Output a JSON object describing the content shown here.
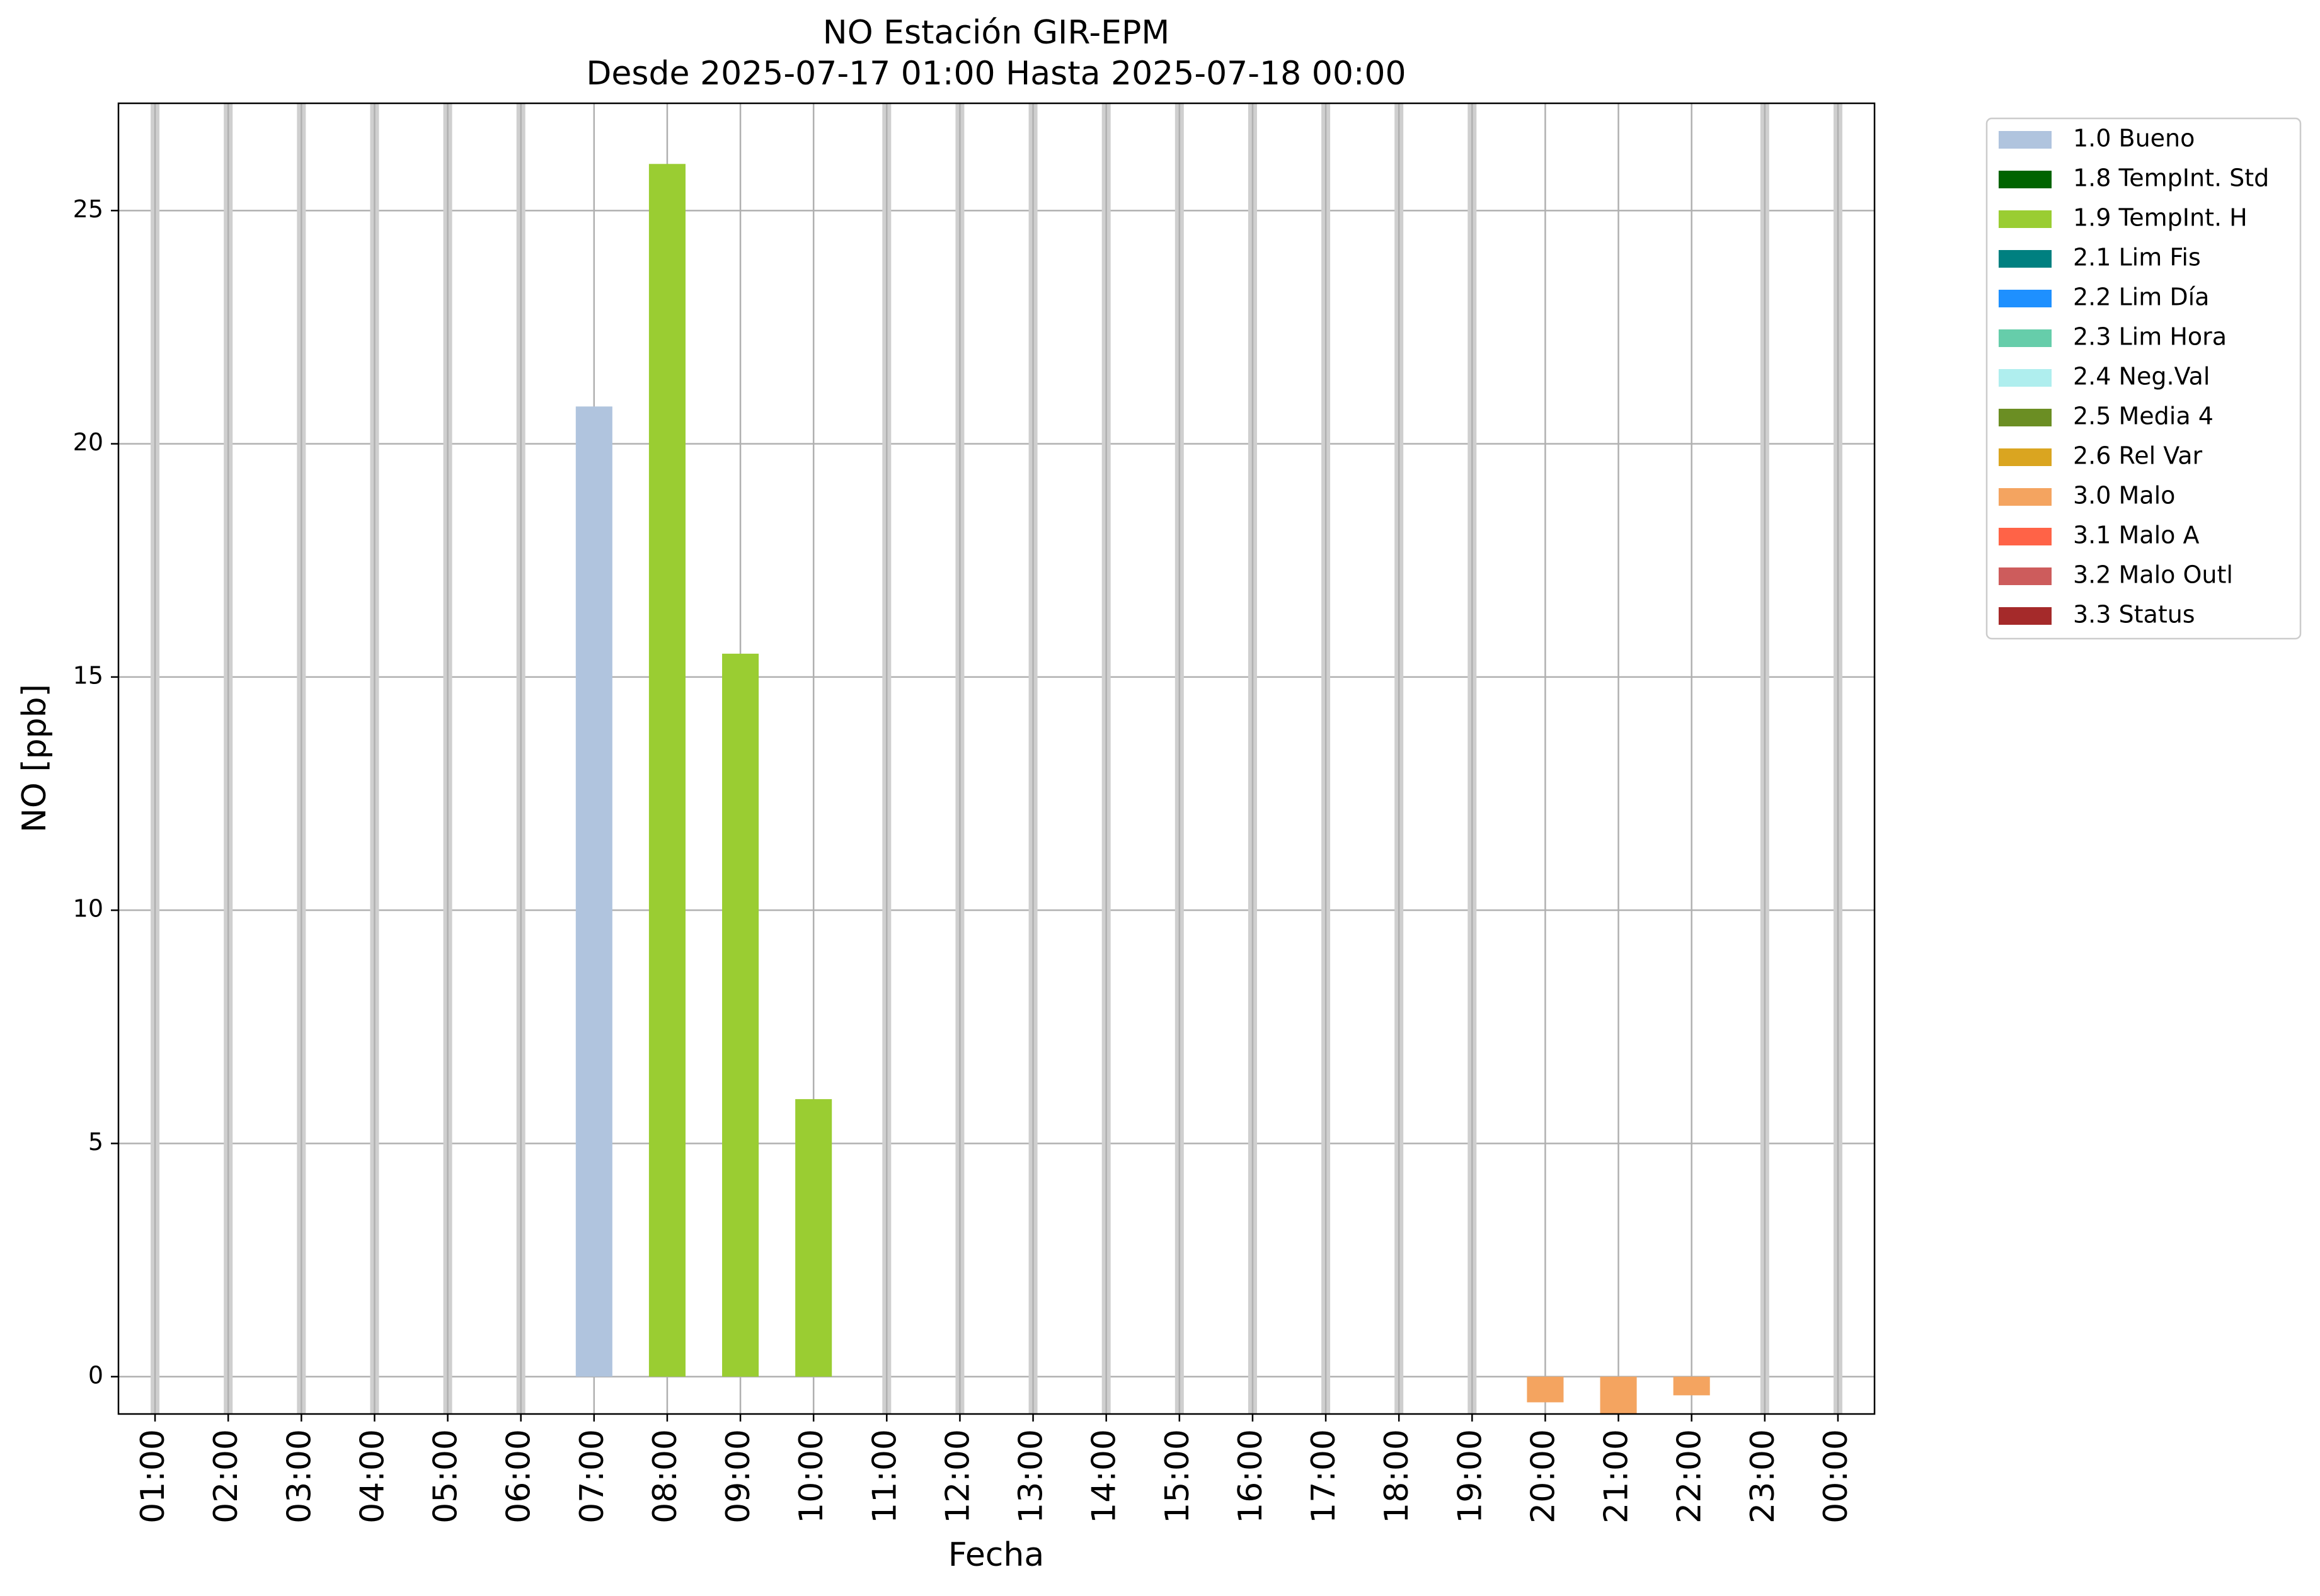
{
  "chart_data": {
    "type": "bar",
    "title": "NO Estación GIR-EPM",
    "subtitle": "Desde 2025-07-17 01:00 Hasta 2025-07-18 00:00",
    "x_label": "Fecha",
    "y_label": "NO [ppb]",
    "categories": [
      "01:00",
      "02:00",
      "03:00",
      "04:00",
      "05:00",
      "06:00",
      "07:00",
      "08:00",
      "09:00",
      "10:00",
      "11:00",
      "12:00",
      "13:00",
      "14:00",
      "15:00",
      "16:00",
      "17:00",
      "18:00",
      "19:00",
      "20:00",
      "21:00",
      "22:00",
      "23:00",
      "00:00"
    ],
    "series": [
      {
        "name": "1.0 Bueno",
        "color": "#b0c4de",
        "values": [
          null,
          null,
          null,
          null,
          null,
          null,
          20.8,
          null,
          null,
          null,
          null,
          null,
          null,
          null,
          null,
          null,
          null,
          null,
          null,
          null,
          null,
          null,
          null,
          null
        ]
      },
      {
        "name": "1.8 TempInt. Std",
        "color": "#006400",
        "values": [
          null,
          null,
          null,
          null,
          null,
          null,
          null,
          null,
          null,
          null,
          null,
          null,
          null,
          null,
          null,
          null,
          null,
          null,
          null,
          null,
          null,
          null,
          null,
          null
        ]
      },
      {
        "name": "1.9 TempInt. H",
        "color": "#9acd32",
        "values": [
          null,
          null,
          null,
          null,
          null,
          null,
          null,
          26.0,
          15.5,
          5.95,
          null,
          null,
          null,
          null,
          null,
          null,
          null,
          null,
          null,
          null,
          null,
          null,
          null,
          null
        ]
      },
      {
        "name": "2.1 Lim Fis",
        "color": "#008080",
        "values": [
          null,
          null,
          null,
          null,
          null,
          null,
          null,
          null,
          null,
          null,
          null,
          null,
          null,
          null,
          null,
          null,
          null,
          null,
          null,
          null,
          null,
          null,
          null,
          null
        ]
      },
      {
        "name": "2.2 Lim Día",
        "color": "#1e90ff",
        "values": [
          null,
          null,
          null,
          null,
          null,
          null,
          null,
          null,
          null,
          null,
          null,
          null,
          null,
          null,
          null,
          null,
          null,
          null,
          null,
          null,
          null,
          null,
          null,
          null
        ]
      },
      {
        "name": "2.3 Lim Hora",
        "color": "#66cdaa",
        "values": [
          null,
          null,
          null,
          null,
          null,
          null,
          null,
          null,
          null,
          null,
          null,
          null,
          null,
          null,
          null,
          null,
          null,
          null,
          null,
          null,
          null,
          null,
          null,
          null
        ]
      },
      {
        "name": "2.4 Neg.Val",
        "color": "#afeeee",
        "values": [
          null,
          null,
          null,
          null,
          null,
          null,
          null,
          null,
          null,
          null,
          null,
          null,
          null,
          null,
          null,
          null,
          null,
          null,
          null,
          null,
          null,
          null,
          null,
          null
        ]
      },
      {
        "name": "2.5 Media 4",
        "color": "#6b8e23",
        "values": [
          null,
          null,
          null,
          null,
          null,
          null,
          null,
          null,
          null,
          null,
          null,
          null,
          null,
          null,
          null,
          null,
          null,
          null,
          null,
          null,
          null,
          null,
          null,
          null
        ]
      },
      {
        "name": "2.6 Rel Var",
        "color": "#daa520",
        "values": [
          null,
          null,
          null,
          null,
          null,
          null,
          null,
          null,
          null,
          null,
          null,
          null,
          null,
          null,
          null,
          null,
          null,
          null,
          null,
          null,
          null,
          null,
          null,
          null
        ]
      },
      {
        "name": "3.0 Malo",
        "color": "#f4a460",
        "values": [
          null,
          null,
          null,
          null,
          null,
          null,
          null,
          null,
          null,
          null,
          null,
          null,
          null,
          null,
          null,
          null,
          null,
          null,
          null,
          -0.55,
          -0.8,
          -0.4,
          null,
          null
        ]
      },
      {
        "name": "3.1 Malo A",
        "color": "#ff6347",
        "values": [
          null,
          null,
          null,
          null,
          null,
          null,
          null,
          null,
          null,
          null,
          null,
          null,
          null,
          null,
          null,
          null,
          null,
          null,
          null,
          null,
          null,
          null,
          null,
          null
        ]
      },
      {
        "name": "3.2 Malo Outl",
        "color": "#cd5c5c",
        "values": [
          null,
          null,
          null,
          null,
          null,
          null,
          null,
          null,
          null,
          null,
          null,
          null,
          null,
          null,
          null,
          null,
          null,
          null,
          null,
          null,
          null,
          null,
          null,
          null
        ]
      },
      {
        "name": "3.3 Status",
        "color": "#a52a2a",
        "values": [
          null,
          null,
          null,
          null,
          null,
          null,
          null,
          null,
          null,
          null,
          null,
          null,
          null,
          null,
          null,
          null,
          null,
          null,
          null,
          null,
          null,
          null,
          null,
          null
        ]
      }
    ],
    "ylim": [
      -0.8,
      27.3
    ],
    "yticks": [
      0,
      5,
      10,
      15,
      20,
      25
    ],
    "grid": true,
    "legend": "outside-right"
  }
}
